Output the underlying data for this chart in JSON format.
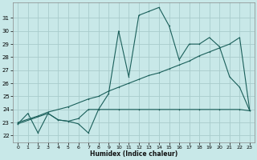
{
  "xlabel": "Humidex (Indice chaleur)",
  "background_color": "#c8e8e8",
  "grid_color": "#a8cccc",
  "line_color": "#1a5f5a",
  "xlim": [
    -0.5,
    23.5
  ],
  "ylim": [
    21.5,
    32.2
  ],
  "xticks": [
    0,
    1,
    2,
    3,
    4,
    5,
    6,
    7,
    8,
    9,
    10,
    11,
    12,
    13,
    14,
    15,
    16,
    17,
    18,
    19,
    20,
    21,
    22,
    23
  ],
  "yticks": [
    22,
    23,
    24,
    25,
    26,
    27,
    28,
    29,
    30,
    31
  ],
  "series1": [
    [
      0,
      22.9
    ],
    [
      1,
      23.7
    ],
    [
      2,
      22.2
    ],
    [
      3,
      23.7
    ],
    [
      4,
      23.2
    ],
    [
      5,
      23.1
    ],
    [
      6,
      22.9
    ],
    [
      7,
      22.2
    ],
    [
      8,
      24.0
    ],
    [
      9,
      25.2
    ],
    [
      10,
      30.0
    ],
    [
      11,
      26.5
    ],
    [
      12,
      31.2
    ],
    [
      13,
      31.5
    ],
    [
      14,
      31.8
    ],
    [
      15,
      30.4
    ],
    [
      16,
      27.8
    ],
    [
      17,
      29.0
    ],
    [
      18,
      29.0
    ],
    [
      19,
      29.5
    ],
    [
      20,
      28.8
    ],
    [
      21,
      26.5
    ],
    [
      22,
      25.7
    ],
    [
      23,
      23.9
    ]
  ],
  "series2": [
    [
      0,
      23.0
    ],
    [
      2,
      23.5
    ],
    [
      3,
      23.8
    ],
    [
      5,
      24.2
    ],
    [
      7,
      24.8
    ],
    [
      8,
      25.0
    ],
    [
      9,
      25.4
    ],
    [
      10,
      25.7
    ],
    [
      11,
      26.0
    ],
    [
      12,
      26.3
    ],
    [
      13,
      26.6
    ],
    [
      14,
      26.8
    ],
    [
      15,
      27.1
    ],
    [
      16,
      27.4
    ],
    [
      17,
      27.7
    ],
    [
      18,
      28.1
    ],
    [
      19,
      28.4
    ],
    [
      20,
      28.7
    ],
    [
      21,
      29.0
    ],
    [
      22,
      29.5
    ],
    [
      23,
      23.9
    ]
  ],
  "series3": [
    [
      0,
      22.9
    ],
    [
      3,
      23.7
    ],
    [
      4,
      23.2
    ],
    [
      5,
      23.1
    ],
    [
      6,
      23.3
    ],
    [
      7,
      24.0
    ],
    [
      8,
      24.0
    ],
    [
      10,
      24.0
    ],
    [
      12,
      24.0
    ],
    [
      14,
      24.0
    ],
    [
      16,
      24.0
    ],
    [
      18,
      24.0
    ],
    [
      20,
      24.0
    ],
    [
      22,
      24.0
    ],
    [
      23,
      23.9
    ]
  ]
}
